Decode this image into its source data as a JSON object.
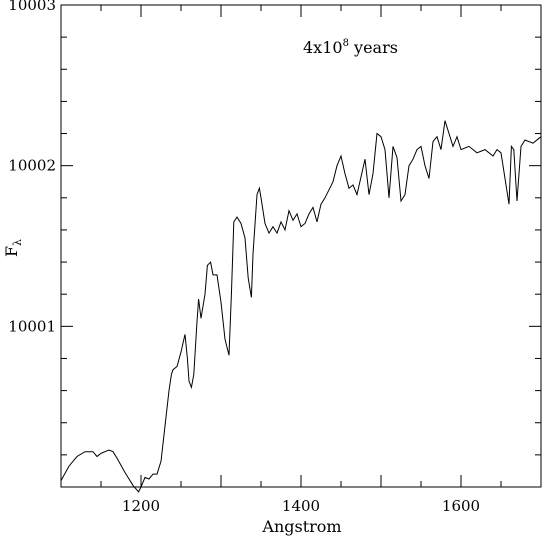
{
  "chart_data": {
    "type": "line",
    "xlabel": "Angstrom",
    "ylabel": "F",
    "ylabel_sub": "λ",
    "annotation": {
      "text": "4x10",
      "sup": "8",
      "suffix": " years"
    },
    "xlim": [
      1100,
      1700
    ],
    "ylim": [
      10000.0,
      10003.0
    ],
    "x_ticks": [
      {
        "v": 1200,
        "label": "1200"
      },
      {
        "v": 1400,
        "label": "1400"
      },
      {
        "v": 1600,
        "label": "1600"
      }
    ],
    "y_ticks": [
      {
        "v": 10001,
        "label": "10001"
      },
      {
        "v": 10002,
        "label": "10002"
      },
      {
        "v": 10003,
        "label": "10003"
      }
    ],
    "grid": false,
    "series": [
      {
        "x": [
          1100,
          1110,
          1120,
          1130,
          1140,
          1145,
          1150,
          1160,
          1165,
          1170,
          1180,
          1190,
          1197,
          1200,
          1205,
          1210,
          1215,
          1220,
          1225,
          1230,
          1235,
          1238,
          1240,
          1245,
          1250,
          1255,
          1258,
          1260,
          1263,
          1266,
          1270,
          1272,
          1275,
          1280,
          1283,
          1287,
          1290,
          1295,
          1300,
          1305,
          1310,
          1313,
          1316,
          1320,
          1325,
          1330,
          1334,
          1338,
          1340,
          1345,
          1348,
          1350,
          1355,
          1360,
          1365,
          1370,
          1375,
          1380,
          1385,
          1390,
          1395,
          1400,
          1405,
          1410,
          1415,
          1420,
          1425,
          1430,
          1435,
          1440,
          1445,
          1450,
          1455,
          1460,
          1465,
          1470,
          1475,
          1480,
          1485,
          1490,
          1495,
          1500,
          1505,
          1510,
          1515,
          1520,
          1525,
          1530,
          1535,
          1540,
          1545,
          1550,
          1555,
          1560,
          1565,
          1570,
          1575,
          1580,
          1585,
          1590,
          1595,
          1600,
          1610,
          1620,
          1630,
          1640,
          1645,
          1650,
          1655,
          1660,
          1663,
          1666,
          1670,
          1675,
          1680,
          1690,
          1700
        ],
        "y": [
          10000.04,
          10000.13,
          10000.19,
          10000.22,
          10000.22,
          10000.19,
          10000.21,
          10000.23,
          10000.22,
          10000.18,
          10000.09,
          10000.01,
          9999.97,
          10000.0,
          10000.06,
          10000.05,
          10000.08,
          10000.08,
          10000.16,
          10000.38,
          10000.6,
          10000.7,
          10000.73,
          10000.75,
          10000.84,
          10000.95,
          10000.8,
          10000.66,
          10000.62,
          10000.7,
          10001.03,
          10001.17,
          10001.05,
          10001.2,
          10001.38,
          10001.4,
          10001.32,
          10001.32,
          10001.15,
          10000.92,
          10000.82,
          10001.2,
          10001.65,
          10001.68,
          10001.64,
          10001.55,
          10001.3,
          10001.18,
          10001.45,
          10001.82,
          10001.86,
          10001.8,
          10001.64,
          10001.58,
          10001.62,
          10001.58,
          10001.65,
          10001.6,
          10001.72,
          10001.66,
          10001.7,
          10001.62,
          10001.64,
          10001.7,
          10001.74,
          10001.65,
          10001.76,
          10001.8,
          10001.85,
          10001.9,
          10002.0,
          10002.06,
          10001.95,
          10001.86,
          10001.88,
          10001.82,
          10001.93,
          10002.04,
          10001.82,
          10001.95,
          10002.2,
          10002.18,
          10002.1,
          10001.8,
          10002.12,
          10002.05,
          10001.78,
          10001.82,
          10002.0,
          10002.04,
          10002.1,
          10002.12,
          10002.0,
          10001.92,
          10002.15,
          10002.18,
          10002.1,
          10002.28,
          10002.2,
          10002.12,
          10002.18,
          10002.1,
          10002.12,
          10002.08,
          10002.1,
          10002.06,
          10002.1,
          10002.08,
          10001.92,
          10001.76,
          10002.12,
          10002.1,
          10001.78,
          10002.12,
          10002.16,
          10002.14,
          10002.18
        ]
      }
    ]
  }
}
